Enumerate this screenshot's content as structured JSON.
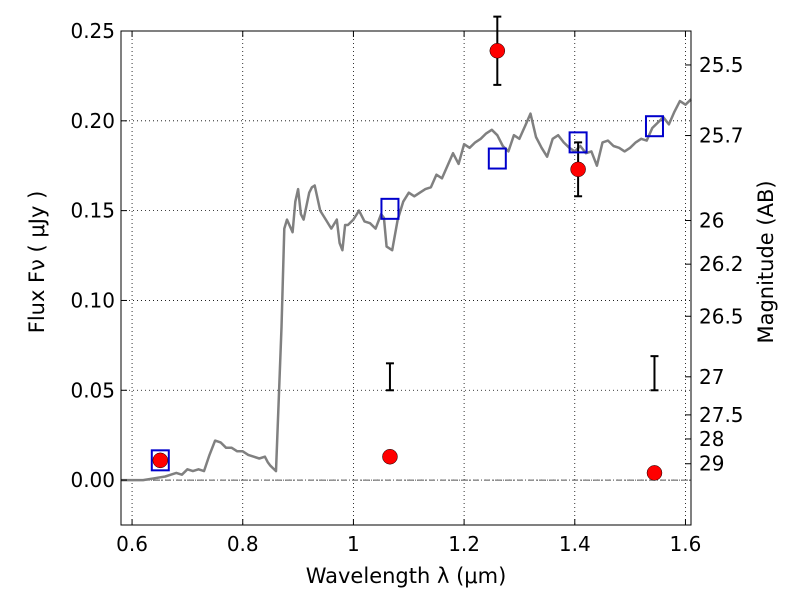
{
  "chart_data": {
    "type": "scatter",
    "title": "",
    "xlabel": "Wavelength  λ (μm)",
    "ylabel": "Flux  Fν  ( μJy )",
    "y2label": "Magnitude (AB)",
    "xlim": [
      0.58,
      1.61
    ],
    "ylim": [
      -0.025,
      0.25
    ],
    "grid": true,
    "legend": "none",
    "x_ticks": [
      {
        "value": 0.6,
        "label": "0.6"
      },
      {
        "value": 0.8,
        "label": "0.8"
      },
      {
        "value": 1.0,
        "label": "1"
      },
      {
        "value": 1.2,
        "label": "1.2"
      },
      {
        "value": 1.4,
        "label": "1.4"
      },
      {
        "value": 1.6,
        "label": "1.6"
      }
    ],
    "y_ticks": [
      {
        "value": 0.0,
        "label": "0.00"
      },
      {
        "value": 0.05,
        "label": "0.05"
      },
      {
        "value": 0.1,
        "label": "0.10"
      },
      {
        "value": 0.15,
        "label": "0.15"
      },
      {
        "value": 0.2,
        "label": "0.20"
      },
      {
        "value": 0.25,
        "label": "0.25"
      }
    ],
    "y2_ticks": [
      {
        "flux": 0.2311,
        "label": "25.5"
      },
      {
        "flux": 0.1918,
        "label": "25.7"
      },
      {
        "flux": 0.1445,
        "label": "26"
      },
      {
        "flux": 0.1202,
        "label": "26.2"
      },
      {
        "flux": 0.0912,
        "label": "26.5"
      },
      {
        "flux": 0.0575,
        "label": "27"
      },
      {
        "flux": 0.0363,
        "label": "27.5"
      },
      {
        "flux": 0.0229,
        "label": "28"
      },
      {
        "flux": 0.0091,
        "label": "29"
      }
    ],
    "colors": {
      "model": "#808080",
      "observed": "#ff0000",
      "synthetic": "#0000cc",
      "errorbar": "#000000",
      "zero_line": "#555555"
    },
    "series": [
      {
        "kind": "model-line",
        "x": [
          0.58,
          0.62,
          0.64,
          0.66,
          0.67,
          0.68,
          0.69,
          0.7,
          0.71,
          0.72,
          0.73,
          0.74,
          0.75,
          0.76,
          0.77,
          0.78,
          0.79,
          0.8,
          0.81,
          0.82,
          0.83,
          0.84,
          0.845,
          0.85,
          0.86,
          0.87,
          0.875,
          0.88,
          0.89,
          0.895,
          0.9,
          0.905,
          0.91,
          0.92,
          0.925,
          0.93,
          0.94,
          0.95,
          0.96,
          0.97,
          0.975,
          0.98,
          0.985,
          0.99,
          1.0,
          1.01,
          1.02,
          1.03,
          1.04,
          1.05,
          1.055,
          1.06,
          1.07,
          1.08,
          1.09,
          1.1,
          1.11,
          1.12,
          1.13,
          1.14,
          1.15,
          1.16,
          1.17,
          1.18,
          1.19,
          1.2,
          1.21,
          1.22,
          1.23,
          1.24,
          1.25,
          1.26,
          1.27,
          1.28,
          1.29,
          1.3,
          1.31,
          1.32,
          1.33,
          1.34,
          1.35,
          1.36,
          1.37,
          1.38,
          1.39,
          1.4,
          1.41,
          1.42,
          1.43,
          1.44,
          1.45,
          1.46,
          1.47,
          1.48,
          1.49,
          1.5,
          1.51,
          1.52,
          1.53,
          1.54,
          1.55,
          1.56,
          1.57,
          1.58,
          1.59,
          1.6,
          1.61
        ],
        "y": [
          0.0,
          0.0,
          0.001,
          0.002,
          0.003,
          0.004,
          0.003,
          0.006,
          0.005,
          0.006,
          0.005,
          0.014,
          0.022,
          0.021,
          0.018,
          0.018,
          0.016,
          0.016,
          0.014,
          0.013,
          0.012,
          0.013,
          0.01,
          0.008,
          0.005,
          0.085,
          0.14,
          0.145,
          0.138,
          0.155,
          0.162,
          0.148,
          0.145,
          0.16,
          0.163,
          0.164,
          0.15,
          0.145,
          0.14,
          0.145,
          0.132,
          0.128,
          0.142,
          0.142,
          0.145,
          0.15,
          0.144,
          0.143,
          0.14,
          0.148,
          0.146,
          0.13,
          0.128,
          0.145,
          0.155,
          0.16,
          0.158,
          0.16,
          0.162,
          0.163,
          0.17,
          0.168,
          0.175,
          0.182,
          0.176,
          0.187,
          0.185,
          0.188,
          0.19,
          0.193,
          0.195,
          0.192,
          0.186,
          0.183,
          0.192,
          0.19,
          0.197,
          0.204,
          0.191,
          0.185,
          0.18,
          0.19,
          0.192,
          0.188,
          0.185,
          0.183,
          0.186,
          0.182,
          0.183,
          0.175,
          0.188,
          0.189,
          0.186,
          0.185,
          0.183,
          0.185,
          0.188,
          0.19,
          0.189,
          0.196,
          0.199,
          0.202,
          0.198,
          0.205,
          0.211,
          0.209,
          0.212
        ]
      },
      {
        "kind": "observed",
        "x": [
          0.651,
          1.066,
          1.26,
          1.406,
          1.544
        ],
        "y": [
          0.011,
          0.013,
          0.239,
          0.173,
          0.004
        ],
        "yerr_low": [
          0.008,
          0.05,
          0.22,
          0.158,
          0.05
        ],
        "yerr_high": [
          0.014,
          0.065,
          0.258,
          0.188,
          0.069
        ]
      },
      {
        "kind": "synthetic",
        "x": [
          0.651,
          1.066,
          1.26,
          1.406,
          1.544
        ],
        "y": [
          0.011,
          0.151,
          0.179,
          0.188,
          0.197
        ]
      }
    ]
  }
}
